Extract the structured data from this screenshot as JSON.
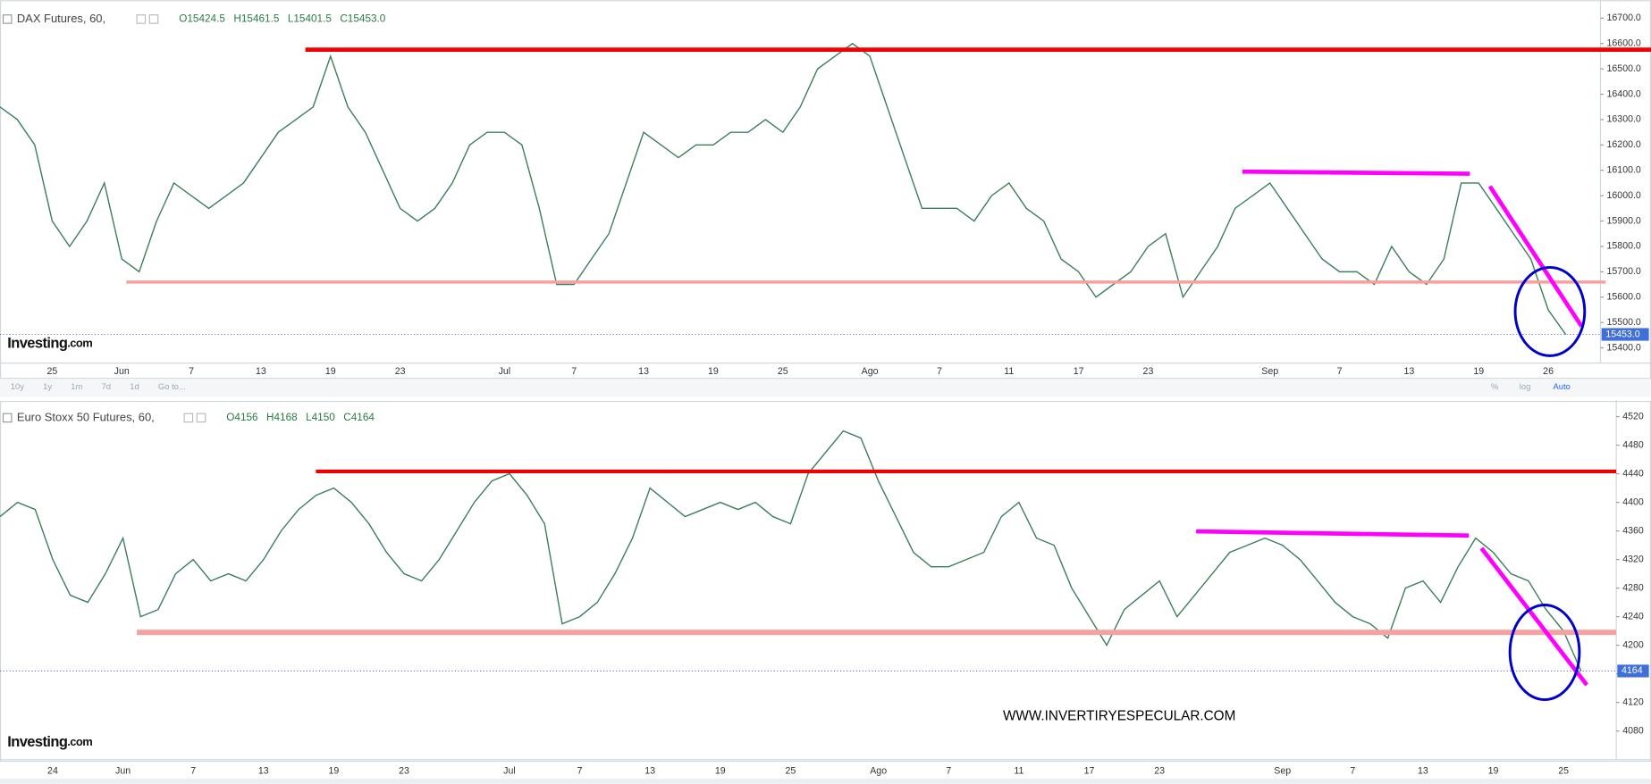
{
  "charts": [
    {
      "chart_data": {
        "type": "line",
        "title": "DAX Futures, 60,",
        "color": "#3d7f5c",
        "ohlc": [
          {
            "value": 15424.5,
            "label": "O15424.5"
          },
          {
            "value": 15461.5,
            "label": "H15461.5"
          },
          {
            "value": 15401.5,
            "label": "L15401.5"
          },
          {
            "value": 15453.0,
            "label": "C15453.0"
          }
        ],
        "categories": [
          null,
          null,
          null,
          "25",
          null,
          null,
          null,
          "Jun",
          null,
          null,
          null,
          "7",
          null,
          null,
          null,
          "13",
          null,
          null,
          null,
          "19",
          null,
          null,
          null,
          "23",
          null,
          null,
          null,
          null,
          null,
          "Jul",
          null,
          null,
          null,
          "7",
          null,
          null,
          null,
          "13",
          null,
          null,
          null,
          "19",
          null,
          null,
          null,
          "25",
          null,
          null,
          null,
          null,
          "Ago",
          null,
          null,
          null,
          "7",
          null,
          null,
          null,
          "11",
          null,
          null,
          null,
          "17",
          null,
          null,
          null,
          "23",
          null,
          null,
          null,
          null,
          null,
          null,
          "Sep",
          null,
          null,
          null,
          "7",
          null,
          null,
          null,
          "13",
          null,
          null,
          null,
          "19",
          null,
          null,
          null,
          "26",
          null,
          null,
          null
        ],
        "values": [
          16350,
          16300,
          16200,
          15900,
          15800,
          15900,
          16050,
          15750,
          15700,
          15900,
          16050,
          16000,
          15950,
          16000,
          16050,
          16150,
          16250,
          16300,
          16350,
          16550,
          16350,
          16250,
          16100,
          15950,
          15900,
          15950,
          16050,
          16200,
          16250,
          16250,
          16200,
          15950,
          15650,
          15650,
          15750,
          15850,
          16050,
          16250,
          16200,
          16150,
          16200,
          16200,
          16250,
          16250,
          16300,
          16250,
          16350,
          16500,
          16550,
          16600,
          16550,
          16350,
          16150,
          15950,
          15950,
          15950,
          15900,
          16000,
          16050,
          15950,
          15900,
          15750,
          15700,
          15600,
          15650,
          15700,
          15800,
          15850,
          15600,
          15700,
          15800,
          15950,
          16000,
          16050,
          15950,
          15850,
          15750,
          15700,
          15700,
          15650,
          15800,
          15700,
          15650,
          15750,
          16050,
          16050,
          15950,
          15850,
          15750,
          15550,
          15453,
          null,
          null
        ],
        "ylim": [
          15340,
          16750
        ],
        "yticks": [
          {
            "value": 15400,
            "label": "15400.0"
          },
          {
            "value": 15500,
            "label": "15500.0"
          },
          {
            "value": 15600,
            "label": "15600.0"
          },
          {
            "value": 15700,
            "label": "15700.0"
          },
          {
            "value": 15800,
            "label": "15800.0"
          },
          {
            "value": 15900,
            "label": "15900.0"
          },
          {
            "value": 16000,
            "label": "16000.0"
          },
          {
            "value": 16100,
            "label": "16100.0"
          },
          {
            "value": 16200,
            "label": "16200.0"
          },
          {
            "value": 16300,
            "label": "16300.0"
          },
          {
            "value": 16400,
            "label": "16400.0"
          },
          {
            "value": 16500,
            "label": "16500.0"
          },
          {
            "value": 16600,
            "label": "16600.0"
          },
          {
            "value": 16700,
            "label": "16700.0"
          }
        ],
        "last_price": {
          "value": 15453,
          "label": "15453.0"
        }
      }
    },
    {
      "chart_data": {
        "type": "line",
        "title": "Euro Stoxx 50 Futures, 60,",
        "color": "#3d7f5c",
        "ohlc": [
          {
            "value": 4156,
            "label": "O4156"
          },
          {
            "value": 4168,
            "label": "H4168"
          },
          {
            "value": 4150,
            "label": "L4150"
          },
          {
            "value": 4164,
            "label": "C4164"
          }
        ],
        "categories": [
          null,
          null,
          null,
          "24",
          null,
          null,
          null,
          "Jun",
          null,
          null,
          null,
          "7",
          null,
          null,
          null,
          "13",
          null,
          null,
          null,
          "19",
          null,
          null,
          null,
          "23",
          null,
          null,
          null,
          null,
          null,
          "Jul",
          null,
          null,
          null,
          "7",
          null,
          null,
          null,
          "13",
          null,
          null,
          null,
          "19",
          null,
          null,
          null,
          "25",
          null,
          null,
          null,
          null,
          "Ago",
          null,
          null,
          null,
          "7",
          null,
          null,
          null,
          "11",
          null,
          null,
          null,
          "17",
          null,
          null,
          null,
          "23",
          null,
          null,
          null,
          null,
          null,
          null,
          "Sep",
          null,
          null,
          null,
          "7",
          null,
          null,
          null,
          "13",
          null,
          null,
          null,
          "19",
          null,
          null,
          null,
          "25",
          null,
          null,
          null
        ],
        "values": [
          4380,
          4400,
          4390,
          4320,
          4270,
          4260,
          4300,
          4350,
          4240,
          4250,
          4300,
          4320,
          4290,
          4300,
          4290,
          4320,
          4360,
          4390,
          4410,
          4420,
          4400,
          4370,
          4330,
          4300,
          4290,
          4320,
          4360,
          4400,
          4430,
          4440,
          4410,
          4370,
          4230,
          4240,
          4260,
          4300,
          4350,
          4420,
          4400,
          4380,
          4390,
          4400,
          4390,
          4400,
          4380,
          4370,
          4440,
          4470,
          4500,
          4490,
          4430,
          4380,
          4330,
          4310,
          4310,
          4320,
          4330,
          4380,
          4400,
          4350,
          4340,
          4280,
          4240,
          4200,
          4250,
          4270,
          4290,
          4240,
          4270,
          4300,
          4330,
          4340,
          4350,
          4340,
          4320,
          4290,
          4260,
          4240,
          4230,
          4210,
          4280,
          4290,
          4260,
          4310,
          4350,
          4330,
          4300,
          4290,
          4250,
          4220,
          4164,
          null,
          null
        ],
        "ylim": [
          4040,
          4536
        ],
        "yticks": [
          4080,
          4120,
          4160,
          4200,
          4240,
          4280,
          4320,
          4360,
          4400,
          4440,
          4480,
          4520
        ],
        "last_price": 4164
      }
    }
  ],
  "toolbar": {
    "ranges": [
      "10y",
      "1y",
      "1m",
      "7d",
      "1d"
    ],
    "goto": "Go to...",
    "options": [
      "%",
      "log",
      "Auto"
    ]
  },
  "watermark": "WWW.INVERTIRYESPECULAR.COM",
  "logo": {
    "brand": "Investing",
    "suffix": ".com"
  }
}
